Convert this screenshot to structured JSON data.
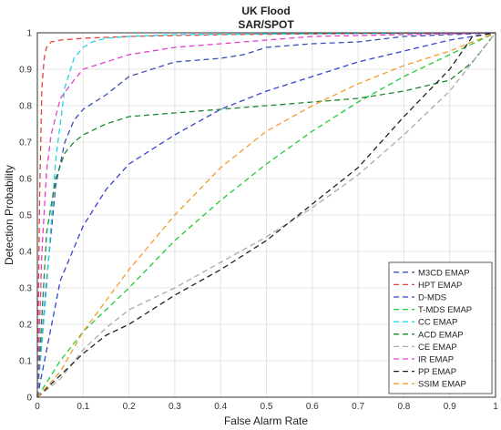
{
  "chart_data": {
    "type": "line",
    "title": "UK Flood",
    "subtitle": "SAR/SPOT",
    "xlabel": "False Alarm Rate",
    "ylabel": "Detection Probability",
    "xlim": [
      0,
      1
    ],
    "ylim": [
      0,
      1
    ],
    "xticks": [
      "0",
      "0.1",
      "0.2",
      "0.3",
      "0.4",
      "0.5",
      "0.6",
      "0.7",
      "0.8",
      "0.9",
      "1"
    ],
    "yticks": [
      "0",
      "0.1",
      "0.2",
      "0.3",
      "0.4",
      "0.5",
      "0.6",
      "0.7",
      "0.8",
      "0.9",
      "1"
    ],
    "grid": true,
    "legend_position": "bottom-right",
    "line_style": "dashed",
    "series": [
      {
        "name": "M3CD EMAP",
        "color": "#3a4fb5",
        "x": [
          0,
          0.02,
          0.04,
          0.06,
          0.08,
          0.1,
          0.15,
          0.2,
          0.25,
          0.3,
          0.35,
          0.4,
          0.45,
          0.5,
          0.6,
          0.7,
          0.8,
          0.9,
          1.0
        ],
        "y": [
          0,
          0.32,
          0.58,
          0.7,
          0.76,
          0.79,
          0.83,
          0.88,
          0.9,
          0.92,
          0.925,
          0.93,
          0.94,
          0.96,
          0.97,
          0.975,
          0.99,
          0.995,
          1.0
        ]
      },
      {
        "name": "HPT EMAP",
        "color": "#e8403c",
        "x": [
          0,
          0.005,
          0.01,
          0.015,
          0.02,
          0.03,
          0.05,
          0.1,
          0.2,
          0.4,
          0.7,
          1.0
        ],
        "y": [
          0,
          0.55,
          0.85,
          0.93,
          0.96,
          0.975,
          0.98,
          0.985,
          0.99,
          0.995,
          0.998,
          1.0
        ]
      },
      {
        "name": "D-MDS",
        "color": "#3344cc",
        "x": [
          0,
          0.05,
          0.1,
          0.15,
          0.2,
          0.3,
          0.4,
          0.5,
          0.6,
          0.7,
          0.8,
          0.9,
          1.0
        ],
        "y": [
          0,
          0.32,
          0.47,
          0.57,
          0.64,
          0.72,
          0.79,
          0.84,
          0.88,
          0.92,
          0.95,
          0.98,
          1.0
        ]
      },
      {
        "name": "T-MDS EMAP",
        "color": "#22cc33",
        "x": [
          0,
          0.02,
          0.05,
          0.1,
          0.2,
          0.3,
          0.4,
          0.5,
          0.6,
          0.7,
          0.8,
          0.9,
          1.0
        ],
        "y": [
          0,
          0.04,
          0.1,
          0.18,
          0.3,
          0.43,
          0.54,
          0.64,
          0.73,
          0.81,
          0.88,
          0.94,
          1.0
        ]
      },
      {
        "name": "CC EMAP",
        "color": "#22d4e0",
        "x": [
          0,
          0.02,
          0.04,
          0.06,
          0.08,
          0.1,
          0.12,
          0.15,
          0.2,
          0.3,
          0.5,
          0.7,
          1.0
        ],
        "y": [
          0,
          0.3,
          0.65,
          0.85,
          0.93,
          0.96,
          0.975,
          0.985,
          0.99,
          0.995,
          0.997,
          0.998,
          1.0
        ]
      },
      {
        "name": "ACD EMAP",
        "color": "#1a8a2a",
        "x": [
          0,
          0.02,
          0.04,
          0.06,
          0.08,
          0.1,
          0.15,
          0.2,
          0.3,
          0.4,
          0.5,
          0.6,
          0.7,
          0.8,
          0.9,
          0.95,
          1.0
        ],
        "y": [
          0,
          0.45,
          0.6,
          0.67,
          0.7,
          0.72,
          0.75,
          0.77,
          0.78,
          0.79,
          0.8,
          0.81,
          0.82,
          0.84,
          0.87,
          0.92,
          1.0
        ]
      },
      {
        "name": "CE EMAP",
        "color": "#aaaaaa",
        "x": [
          0,
          0.05,
          0.1,
          0.15,
          0.2,
          0.3,
          0.4,
          0.5,
          0.6,
          0.7,
          0.8,
          0.9,
          1.0
        ],
        "y": [
          0,
          0.05,
          0.13,
          0.19,
          0.24,
          0.3,
          0.37,
          0.44,
          0.52,
          0.61,
          0.72,
          0.84,
          1.0
        ]
      },
      {
        "name": "IR EMAP",
        "color": "#e040d0",
        "x": [
          0,
          0.01,
          0.02,
          0.03,
          0.05,
          0.08,
          0.1,
          0.15,
          0.2,
          0.3,
          0.4,
          0.5,
          0.6,
          0.8,
          1.0
        ],
        "y": [
          0,
          0.4,
          0.62,
          0.72,
          0.82,
          0.87,
          0.9,
          0.92,
          0.94,
          0.96,
          0.97,
          0.98,
          0.99,
          0.995,
          1.0
        ]
      },
      {
        "name": "PP EMAP",
        "color": "#222222",
        "x": [
          0,
          0.05,
          0.1,
          0.15,
          0.2,
          0.3,
          0.4,
          0.5,
          0.6,
          0.7,
          0.8,
          0.9,
          0.95,
          1.0
        ],
        "y": [
          0,
          0.06,
          0.12,
          0.17,
          0.2,
          0.28,
          0.35,
          0.43,
          0.53,
          0.63,
          0.77,
          0.9,
          0.99,
          1.0
        ]
      },
      {
        "name": "SSIM EMAP",
        "color": "#f59a2a",
        "x": [
          0,
          0.05,
          0.1,
          0.2,
          0.3,
          0.4,
          0.5,
          0.6,
          0.7,
          0.8,
          0.9,
          1.0
        ],
        "y": [
          0,
          0.07,
          0.18,
          0.35,
          0.5,
          0.63,
          0.73,
          0.8,
          0.86,
          0.91,
          0.95,
          1.0
        ]
      }
    ]
  }
}
